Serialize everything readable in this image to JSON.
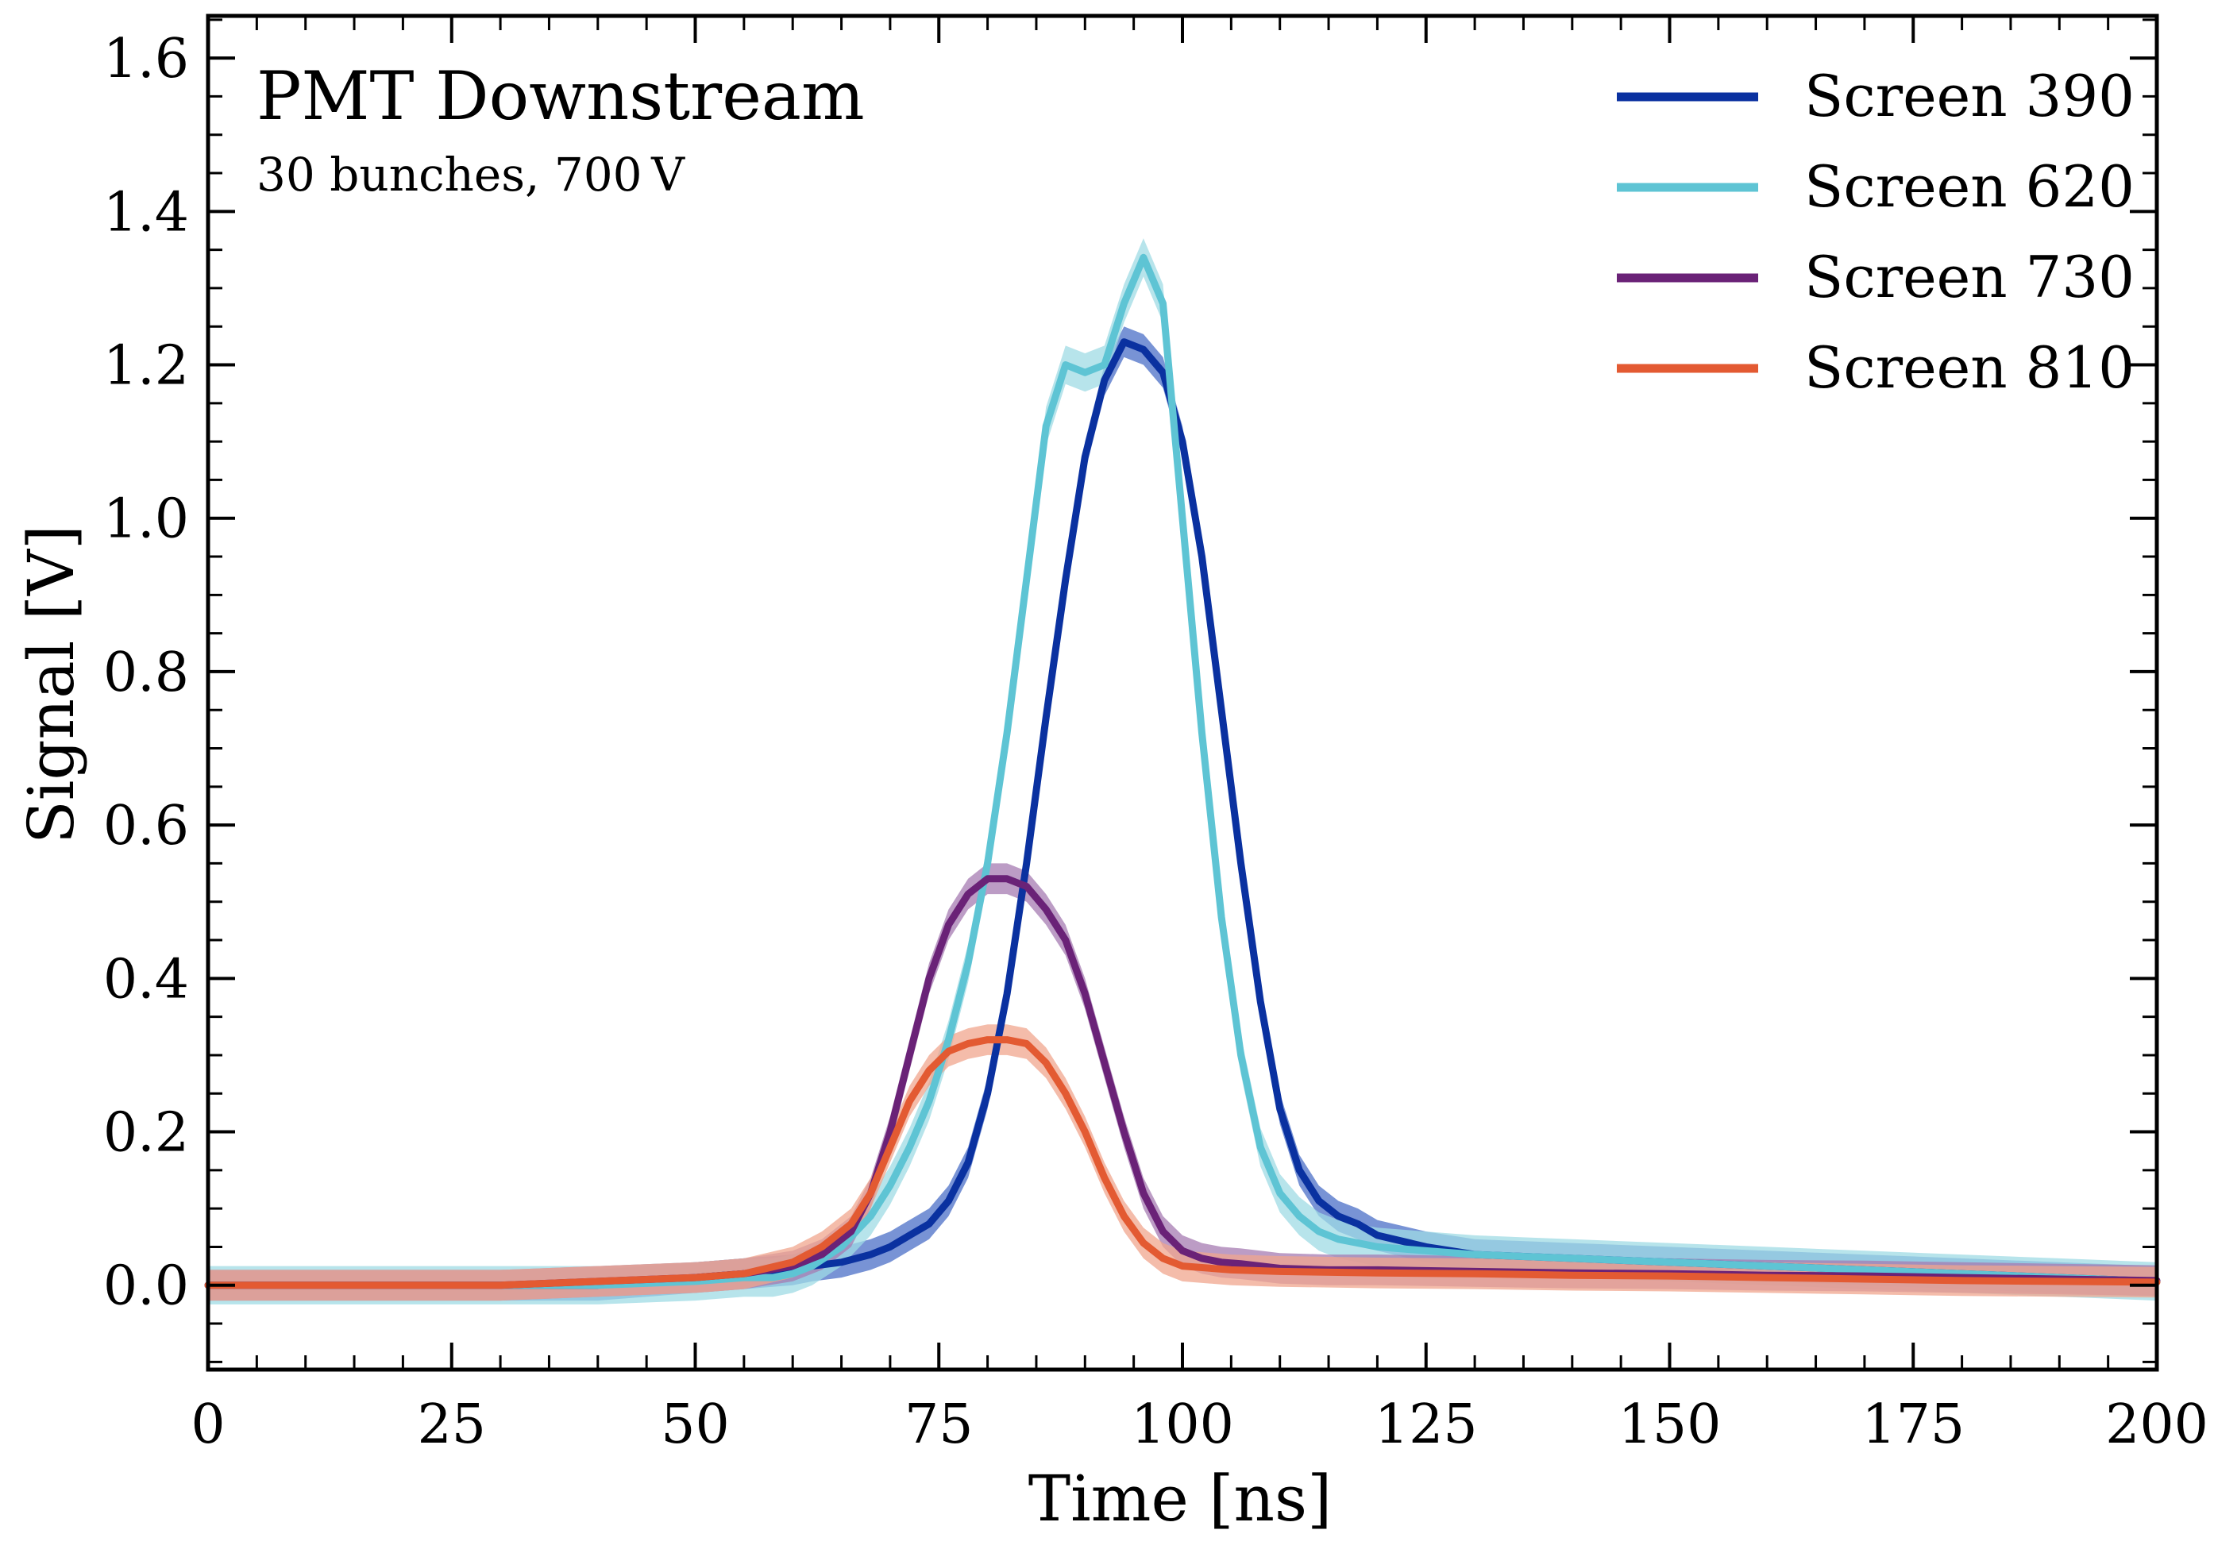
{
  "chart_data": {
    "type": "line",
    "title": "PMT Downstream",
    "subtitle": "30 bunches, 700 V",
    "xlabel": "Time [ns]",
    "ylabel": "Signal [V]",
    "xlim": [
      0,
      200
    ],
    "ylim": [
      -0.11,
      1.655
    ],
    "xticks": [
      0,
      25,
      50,
      75,
      100,
      125,
      150,
      175,
      200
    ],
    "xtick_labels": [
      "0",
      "25",
      "50",
      "75",
      "100",
      "125",
      "150",
      "175",
      "200"
    ],
    "yticks": [
      0.0,
      0.2,
      0.4,
      0.6,
      0.8,
      1.0,
      1.2,
      1.4,
      1.6
    ],
    "ytick_labels": [
      "0.0",
      "0.2",
      "0.4",
      "0.6",
      "0.8",
      "1.0",
      "1.2",
      "1.4",
      "1.6"
    ],
    "legend_position": "top-right",
    "grid": false,
    "series": [
      {
        "name": "Screen 390",
        "color": "#0a31a0",
        "band_color": "#4b6fc7",
        "x": [
          0,
          10,
          20,
          30,
          40,
          50,
          55,
          60,
          62,
          65,
          68,
          70,
          72,
          74,
          76,
          78,
          80,
          82,
          84,
          86,
          88,
          90,
          92,
          94,
          96,
          98,
          100,
          102,
          104,
          106,
          108,
          110,
          112,
          114,
          116,
          118,
          120,
          125,
          130,
          140,
          150,
          160,
          170,
          180,
          190,
          200
        ],
        "y": [
          0.0,
          0.0,
          0.0,
          0.0,
          0.0,
          0.01,
          0.015,
          0.02,
          0.025,
          0.03,
          0.04,
          0.05,
          0.065,
          0.08,
          0.11,
          0.16,
          0.25,
          0.38,
          0.55,
          0.74,
          0.92,
          1.08,
          1.18,
          1.23,
          1.22,
          1.19,
          1.1,
          0.95,
          0.75,
          0.55,
          0.37,
          0.23,
          0.15,
          0.11,
          0.09,
          0.08,
          0.065,
          0.05,
          0.04,
          0.035,
          0.03,
          0.025,
          0.02,
          0.015,
          0.01,
          0.005
        ],
        "band": 0.02
      },
      {
        "name": "Screen 620",
        "color": "#5ec4d4",
        "band_color": "#9fdbe4",
        "x": [
          0,
          10,
          20,
          30,
          40,
          50,
          55,
          58,
          60,
          62,
          65,
          68,
          70,
          72,
          74,
          76,
          78,
          80,
          82,
          84,
          86,
          88,
          90,
          92,
          94,
          96,
          98,
          100,
          102,
          104,
          106,
          108,
          110,
          112,
          114,
          116,
          118,
          120,
          125,
          130,
          140,
          150,
          160,
          170,
          180,
          190,
          200
        ],
        "y": [
          0.0,
          0.0,
          0.0,
          0.0,
          0.0,
          0.005,
          0.01,
          0.01,
          0.015,
          0.025,
          0.05,
          0.09,
          0.13,
          0.18,
          0.24,
          0.32,
          0.42,
          0.55,
          0.72,
          0.92,
          1.12,
          1.2,
          1.19,
          1.2,
          1.28,
          1.34,
          1.28,
          1.0,
          0.72,
          0.48,
          0.3,
          0.18,
          0.12,
          0.09,
          0.07,
          0.06,
          0.055,
          0.05,
          0.045,
          0.04,
          0.035,
          0.03,
          0.025,
          0.02,
          0.015,
          0.01,
          0.005
        ],
        "band": 0.025
      },
      {
        "name": "Screen 730",
        "color": "#6a2277",
        "band_color": "#a67bb2",
        "x": [
          0,
          10,
          20,
          30,
          40,
          50,
          55,
          60,
          63,
          66,
          68,
          70,
          72,
          74,
          76,
          78,
          80,
          82,
          84,
          86,
          88,
          90,
          92,
          94,
          96,
          98,
          100,
          102,
          104,
          106,
          108,
          110,
          115,
          120,
          130,
          140,
          150,
          160,
          170,
          180,
          190,
          200
        ],
        "y": [
          0.0,
          0.0,
          0.0,
          0.0,
          0.005,
          0.01,
          0.015,
          0.025,
          0.04,
          0.07,
          0.12,
          0.2,
          0.3,
          0.4,
          0.47,
          0.51,
          0.53,
          0.53,
          0.52,
          0.49,
          0.45,
          0.38,
          0.29,
          0.2,
          0.12,
          0.07,
          0.045,
          0.035,
          0.03,
          0.028,
          0.025,
          0.022,
          0.02,
          0.02,
          0.018,
          0.016,
          0.015,
          0.013,
          0.012,
          0.01,
          0.008,
          0.006
        ],
        "band": 0.02
      },
      {
        "name": "Screen 810",
        "color": "#e35a32",
        "band_color": "#f0a58e",
        "x": [
          0,
          10,
          20,
          30,
          40,
          50,
          55,
          60,
          63,
          66,
          68,
          70,
          72,
          74,
          76,
          78,
          80,
          82,
          84,
          86,
          88,
          90,
          92,
          94,
          96,
          98,
          100,
          105,
          110,
          120,
          130,
          140,
          150,
          160,
          170,
          180,
          190,
          200
        ],
        "y": [
          0.0,
          0.0,
          0.0,
          0.0,
          0.005,
          0.01,
          0.015,
          0.03,
          0.05,
          0.08,
          0.12,
          0.18,
          0.24,
          0.28,
          0.305,
          0.315,
          0.32,
          0.32,
          0.315,
          0.29,
          0.25,
          0.2,
          0.14,
          0.09,
          0.055,
          0.035,
          0.025,
          0.02,
          0.018,
          0.016,
          0.015,
          0.013,
          0.012,
          0.01,
          0.008,
          0.006,
          0.005,
          0.004
        ],
        "band": 0.02
      }
    ]
  }
}
